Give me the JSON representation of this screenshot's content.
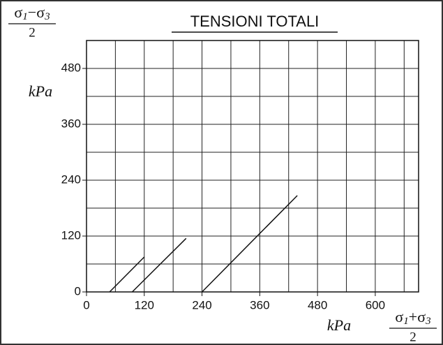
{
  "chart_data": {
    "type": "line",
    "title": "TENSIONI TOTALI",
    "y_label": {
      "numerator": [
        "σ",
        "1",
        "−σ",
        "3"
      ],
      "denominator": "2",
      "unit": "kPa"
    },
    "x_label": {
      "numerator": [
        "σ",
        "1",
        "+σ",
        "3"
      ],
      "denominator": "2",
      "unit": "kPa"
    },
    "xlim": [
      0,
      690
    ],
    "ylim": [
      0,
      540
    ],
    "xticks": [
      0,
      120,
      240,
      360,
      480,
      600
    ],
    "yticks": [
      0,
      120,
      240,
      360,
      480
    ],
    "xgrid": [
      60,
      120,
      180,
      240,
      300,
      360,
      420,
      480,
      540,
      600,
      660
    ],
    "ygrid": [
      60,
      120,
      180,
      240,
      300,
      360,
      420,
      480
    ],
    "grid": true,
    "color": "#111",
    "series": [
      {
        "x": [
          48,
          120
        ],
        "values": [
          0,
          75
        ]
      },
      {
        "x": [
          95,
          207
        ],
        "values": [
          0,
          115
        ]
      },
      {
        "x": [
          240,
          438
        ],
        "values": [
          0,
          207
        ]
      }
    ]
  }
}
